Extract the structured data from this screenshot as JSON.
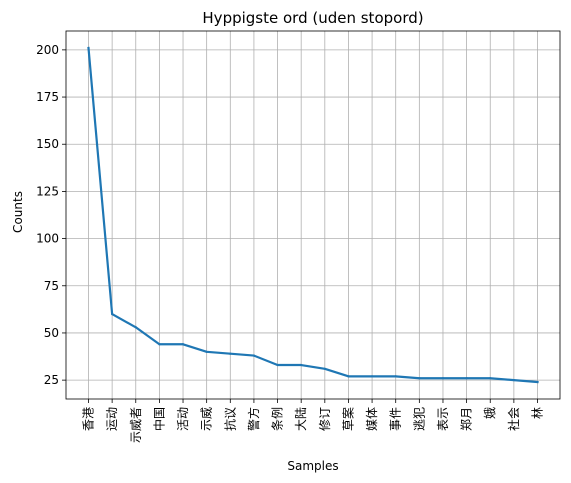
{
  "chart_data": {
    "type": "line",
    "title": "Hyppigste ord (uden stopord)",
    "xlabel": "Samples",
    "ylabel": "Counts",
    "categories": [
      "香港",
      "运动",
      "示威者",
      "中国",
      "活动",
      "示威",
      "抗议",
      "警方",
      "条例",
      "大陆",
      "修订",
      "草案",
      "媒体",
      "事件",
      "逃犯",
      "表示",
      "郑月",
      "娥",
      "社会",
      "林"
    ],
    "series": [
      {
        "values": [
          201,
          60,
          53,
          44,
          44,
          40,
          39,
          38,
          33,
          33,
          31,
          27,
          27,
          27,
          26,
          26,
          26,
          26,
          25,
          24
        ]
      }
    ],
    "ylim": [
      15,
      210
    ],
    "yticks": [
      25,
      50,
      75,
      100,
      125,
      150,
      175,
      200
    ],
    "grid": true,
    "line_color": "#1f77b4"
  }
}
